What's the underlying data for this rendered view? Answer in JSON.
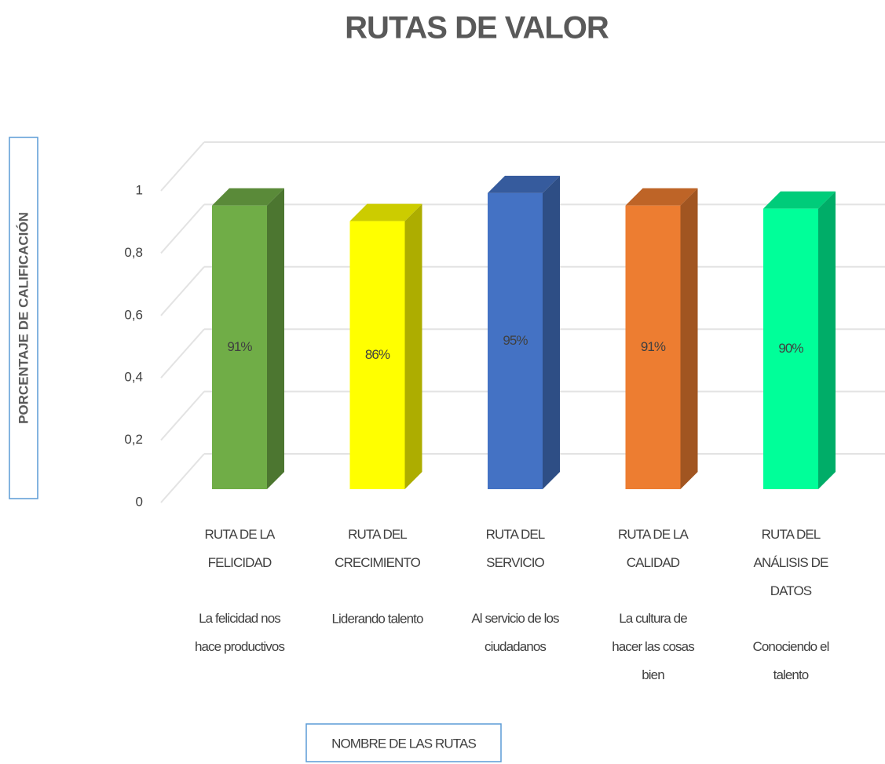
{
  "chart_data": {
    "type": "bar3d",
    "title": "RUTAS DE VALOR",
    "y_axis_label": "PORCENTAJE DE CALIFICACIÓN",
    "x_axis_label": "NOMBRE DE LAS RUTAS",
    "categories": [
      "RUTA DE LA\nFELICIDAD",
      "RUTA DEL\nCRECIMIENTO",
      "RUTA DEL\nSERVICIO",
      "RUTA DE LA\nCALIDAD",
      "RUTA DEL\nANÁLISIS DE\nDATOS"
    ],
    "category_notes": [
      "La felicidad nos\nhace productivos",
      "Liderando talento",
      "Al servicio de los\nciudadanos",
      "La cultura de\nhacer las cosas\nbien",
      "Conociendo el\ntalento"
    ],
    "values": [
      0.91,
      0.86,
      0.95,
      0.91,
      0.9
    ],
    "value_labels": [
      "91%",
      "86%",
      "95%",
      "91%",
      "90%"
    ],
    "colors": [
      "#70ad47",
      "#ffff00",
      "#4472c4",
      "#ed7d31",
      "#00ff99"
    ],
    "ylim": [
      0,
      1
    ],
    "yticks": [
      0,
      {
        "value": 0.2,
        "label": "0,2"
      },
      {
        "value": 0.4,
        "label": "0,4"
      },
      {
        "value": 0.6,
        "label": "0,6"
      },
      {
        "value": 0.8,
        "label": "0,8"
      },
      1
    ],
    "grid": true
  }
}
